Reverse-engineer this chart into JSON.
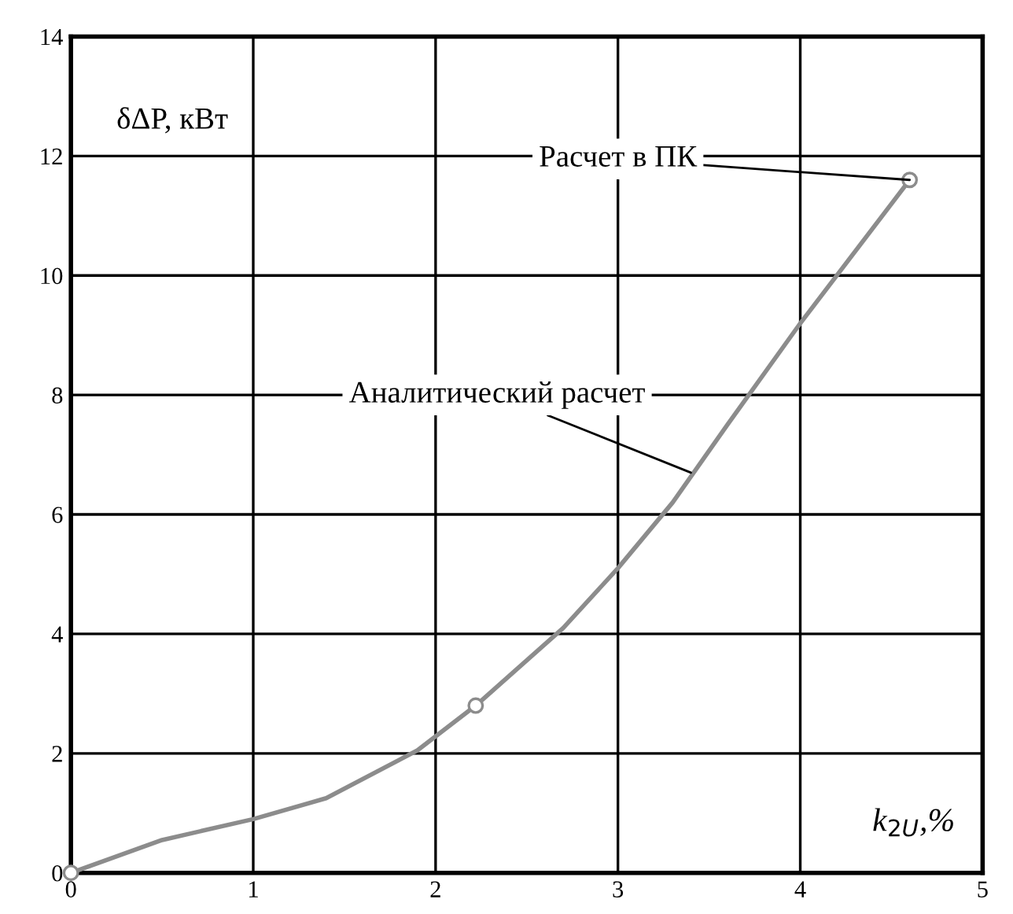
{
  "chart_data": {
    "type": "line",
    "xlabel": "k$_{2U}$,%",
    "ylabel": "δΔP, кВт",
    "xlim": [
      0,
      5
    ],
    "xticks": [
      0,
      1,
      2,
      3,
      4,
      5
    ],
    "ylim": [
      0,
      14
    ],
    "yticks": [
      0,
      2,
      4,
      6,
      8,
      10,
      12,
      14
    ],
    "grid": true,
    "series": [
      {
        "color": "#8c8c8c",
        "marker": "none",
        "x": [
          0,
          0.5,
          1,
          1.4,
          1.9,
          2.22,
          2.7,
          3,
          3.3,
          3.6,
          4,
          4.6
        ],
        "values": [
          0,
          0.55,
          0.9,
          1.25,
          2.05,
          2.8,
          4.1,
          5.1,
          6.2,
          7.5,
          9.2,
          11.6
        ]
      },
      {
        "type": "scatter",
        "color": "#8c8c8c",
        "marker": "circle",
        "x": [
          0,
          2.22,
          4.6
        ],
        "values": [
          0,
          2.8,
          11.6
        ]
      }
    ],
    "annotations": [
      {
        "text": "Аналитический расчет",
        "x": 3.4,
        "y": 6.7
      },
      {
        "text": "Расчет в ПК",
        "x": 4.6,
        "y": 11.6
      }
    ]
  }
}
